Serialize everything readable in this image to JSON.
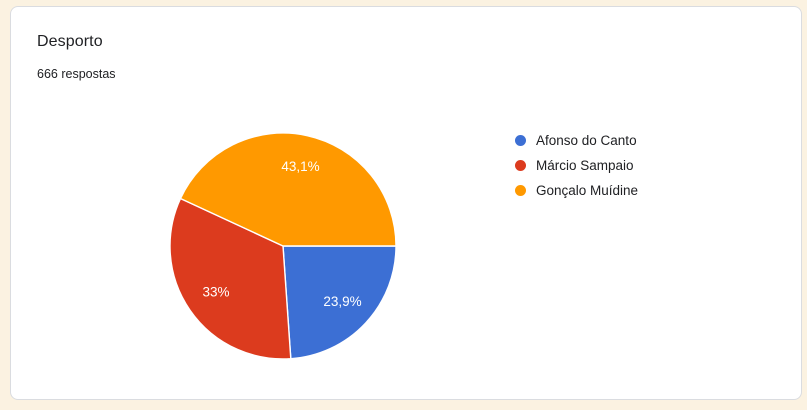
{
  "theme": {
    "page_background": "#fbf2e1",
    "card_background": "#ffffff",
    "card_border": "#dadce0",
    "text_primary": "#202124",
    "slice_label_text": "#ffffff"
  },
  "chart_data": {
    "type": "pie",
    "title": "Desporto",
    "subtitle": "666 respostas",
    "legend_position": "right",
    "direction": "clockwise",
    "start_angle_deg": 0,
    "series": [
      {
        "name": "Afonso do Canto",
        "value_percent": 23.9,
        "label": "23,9%",
        "color": "#3c6fd4"
      },
      {
        "name": "Márcio Sampaio",
        "value_percent": 33,
        "label": "33%",
        "color": "#dc3b1e"
      },
      {
        "name": "Gonçalo Muídine",
        "value_percent": 43.1,
        "label": "43,1%",
        "color": "#ff9900"
      }
    ]
  }
}
